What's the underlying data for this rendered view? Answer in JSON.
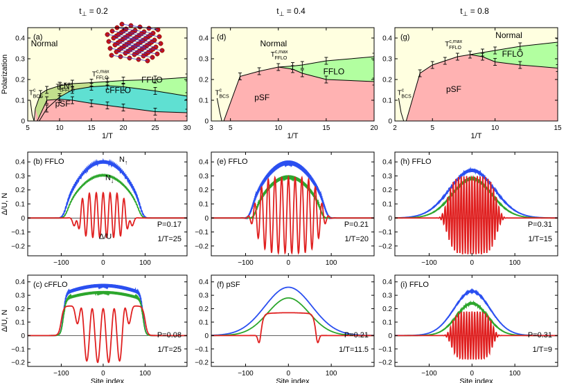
{
  "columns": [
    {
      "title": "t",
      "sub": "⊥",
      "value": " = 0.2"
    },
    {
      "title": "t",
      "sub": "⊥",
      "value": " = 0.4"
    },
    {
      "title": "t",
      "sub": "⊥",
      "value": " = 0.8"
    }
  ],
  "colors": {
    "normal": "#ffffe0",
    "pSF": "#ffb2b2",
    "FFLO": "#b2ffa0",
    "cFFLO": "#5fe0d2",
    "cN": "#c2df8c",
    "up": "#2a4ff0",
    "down": "#2ca62c",
    "gap": "#e02020"
  },
  "axes_labels": {
    "polarization": "Polarization",
    "inverse_T": "1/T",
    "gap_density": "Δ/U, N",
    "site_index": "Site index"
  },
  "chart_data": [
    {
      "id": "a",
      "type": "area",
      "panel_label": "(a)",
      "xlabel": "1/T",
      "ylabel": "Polarization",
      "xlim": [
        5,
        30
      ],
      "ylim": [
        0,
        0.45
      ],
      "xticks": [
        5,
        10,
        15,
        20,
        25,
        30
      ],
      "yticks": [
        0,
        0.1,
        0.2,
        0.3,
        0.4
      ],
      "regions": [
        {
          "name": "Normal",
          "label_at": [
            7.6,
            0.36
          ]
        },
        {
          "name": "cN",
          "label_at": [
            10.8,
            0.155
          ]
        },
        {
          "name": "FFLO",
          "label_at": [
            24.5,
            0.185
          ]
        },
        {
          "name": "cFFLO",
          "label_at": [
            19.2,
            0.135
          ]
        },
        {
          "name": "pSF",
          "label_at": [
            10.5,
            0.07
          ]
        }
      ],
      "upper_boundary": {
        "x": [
          6.2,
          7,
          8,
          10,
          12,
          15,
          17.5,
          20,
          25,
          30
        ],
        "y": [
          0.06,
          0.13,
          0.15,
          0.17,
          0.18,
          0.185,
          0.19,
          0.195,
          0.2,
          0.21
        ]
      },
      "middle_boundary": {
        "x": [
          6.8,
          8,
          10,
          12,
          15,
          17.5,
          20,
          25,
          30
        ],
        "y": [
          0.0,
          0.06,
          0.115,
          0.15,
          0.165,
          0.17,
          0.165,
          0.145,
          0.12
        ]
      },
      "lower_boundary": {
        "x": [
          6.5,
          8,
          10,
          12,
          15,
          17.5,
          20,
          25,
          30
        ],
        "y": [
          0.0,
          0.1,
          0.105,
          0.1,
          0.085,
          0.075,
          0.065,
          0.045,
          0.04
        ]
      },
      "error_points": {
        "x": [
          8,
          10,
          12,
          15,
          17.5,
          20,
          25
        ],
        "y": [
          0.15,
          0.17,
          0.18,
          0.185,
          0.19,
          0.195,
          0.2
        ]
      },
      "tc_curve": {
        "x": [
          5.4,
          5.7,
          6.0,
          6.2
        ],
        "y": [
          0.1,
          0.03,
          0.0,
          0.06
        ]
      },
      "annotations": [
        {
          "main": "T",
          "sup": "c",
          "sub": "BCS",
          "at": [
            5.2,
            0.125
          ]
        },
        {
          "main": "T",
          "sup": "c,max",
          "sub": "cFFLO",
          "at": [
            9.4,
            0.155
          ]
        },
        {
          "main": "T",
          "sup": "c,max",
          "sub": "FFLO",
          "at": [
            15.1,
            0.215
          ]
        }
      ],
      "has_inset_image": true
    },
    {
      "id": "d",
      "type": "area",
      "panel_label": "(d)",
      "xlabel": "1/T",
      "ylabel": "",
      "xlim": [
        3,
        20
      ],
      "ylim": [
        0,
        0.45
      ],
      "xticks": [
        3,
        5,
        10,
        15,
        20
      ],
      "yticks": [
        0,
        0.1,
        0.2,
        0.3,
        0.4
      ],
      "regions": [
        {
          "name": "Normal",
          "label_at": [
            9.5,
            0.36
          ]
        },
        {
          "name": "FFLO",
          "label_at": [
            15.8,
            0.225
          ]
        },
        {
          "name": "pSF",
          "label_at": [
            8.3,
            0.1
          ]
        }
      ],
      "upper_boundary": {
        "x": [
          4.3,
          6,
          8,
          10,
          11.5,
          12.5,
          15,
          20
        ],
        "y": [
          0.0,
          0.215,
          0.24,
          0.26,
          0.265,
          0.27,
          0.29,
          0.31
        ]
      },
      "lower_boundary": {
        "x": [
          10,
          11.5,
          12.5,
          15,
          20
        ],
        "y": [
          0.26,
          0.25,
          0.23,
          0.2,
          0.19
        ]
      },
      "error_points": {
        "x": [
          10,
          11.5,
          12.5,
          15,
          20
        ],
        "y": [
          0.26,
          0.265,
          0.27,
          0.29,
          0.31
        ]
      },
      "tc_curve": {
        "x": [
          3.6,
          3.9,
          4.1,
          4.3
        ],
        "y": [
          0.11,
          0.04,
          0.0,
          0.0
        ]
      },
      "annotations": [
        {
          "main": "T",
          "sup": "c",
          "sub": "BCS",
          "at": [
            3.4,
            0.125
          ]
        },
        {
          "main": "T",
          "sup": "c,max",
          "sub": "FFLO",
          "at": [
            9.2,
            0.31
          ]
        }
      ]
    },
    {
      "id": "g",
      "type": "area",
      "panel_label": "(g)",
      "xlabel": "1/T",
      "ylabel": "",
      "xlim": [
        2,
        15
      ],
      "ylim": [
        0,
        0.45
      ],
      "xticks": [
        2,
        5,
        10,
        15
      ],
      "yticks": [
        0,
        0.1,
        0.2,
        0.3,
        0.4
      ],
      "regions": [
        {
          "name": "Normal",
          "label_at": [
            11.1,
            0.4
          ]
        },
        {
          "name": "FFLO",
          "label_at": [
            11.4,
            0.31
          ]
        },
        {
          "name": "pSF",
          "label_at": [
            6.7,
            0.14
          ]
        }
      ],
      "upper_boundary": {
        "x": [
          2.9,
          4,
          5,
          6,
          7,
          8,
          9,
          10,
          12,
          15
        ],
        "y": [
          0.0,
          0.23,
          0.27,
          0.29,
          0.31,
          0.32,
          0.33,
          0.34,
          0.36,
          0.38
        ]
      },
      "lower_boundary": {
        "x": [
          8,
          9,
          10,
          12,
          15
        ],
        "y": [
          0.32,
          0.31,
          0.285,
          0.27,
          0.255
        ]
      },
      "error_points": {
        "x": [
          8,
          9,
          10,
          12,
          15
        ],
        "y": [
          0.32,
          0.33,
          0.34,
          0.36,
          0.38
        ]
      },
      "tc_curve": {
        "x": [
          2.3,
          2.5,
          2.7,
          2.9
        ],
        "y": [
          0.11,
          0.04,
          0.0,
          0.0
        ]
      },
      "annotations": [
        {
          "main": "T",
          "sup": "c",
          "sub": "BCS",
          "at": [
            2.2,
            0.125
          ]
        },
        {
          "main": "T",
          "sup": "c,max",
          "sub": "FFLO",
          "at": [
            6.0,
            0.36
          ]
        }
      ]
    },
    {
      "id": "b",
      "type": "line",
      "panel_label": "(b) FFLO",
      "ylabel": "Δ/U, N",
      "xlabel": "",
      "xlim": [
        -180,
        200
      ],
      "ylim": [
        -0.27,
        0.47
      ],
      "xticks": [
        -100,
        0,
        100
      ],
      "yticks": [
        -0.2,
        -0.1,
        0,
        0.1,
        0.2,
        0.3,
        0.4
      ],
      "info": [
        "P=0.17",
        "1/T=25"
      ],
      "series_labels": [
        {
          "text": "N",
          "sub": "↑",
          "at": [
            38,
            0.4
          ]
        },
        {
          "text": "N",
          "sub": "↓",
          "at": [
            5,
            0.27
          ]
        },
        {
          "text": "Δ/U",
          "at": [
            -10,
            -0.15
          ]
        }
      ],
      "series": [
        {
          "name": "N↑",
          "kind": "dome",
          "amp": 0.4,
          "halfwidth": 92,
          "edge": 20,
          "ripple": 0.012,
          "ripple_k": 0.35
        },
        {
          "name": "N↓",
          "kind": "dome",
          "amp": 0.305,
          "halfwidth": 88,
          "edge": 20,
          "ripple": 0.005,
          "ripple_k": 0.35
        },
        {
          "name": "Δ/U",
          "kind": "oscill",
          "amp": 0.16,
          "offset": 0.02,
          "halfwidth": 62,
          "k": 0.38,
          "edge_dip": -0.08
        }
      ]
    },
    {
      "id": "e",
      "type": "line",
      "panel_label": "(e) FFLO",
      "ylabel": "",
      "xlabel": "",
      "xlim": [
        -180,
        200
      ],
      "ylim": [
        -0.27,
        0.47
      ],
      "xticks": [
        -100,
        0,
        100
      ],
      "yticks": [
        -0.2,
        -0.1,
        0,
        0.1,
        0.2,
        0.3,
        0.4
      ],
      "info": [
        "P=0.21",
        "1/T=20"
      ],
      "series": [
        {
          "name": "N↑",
          "kind": "dome",
          "amp": 0.39,
          "halfwidth": 88,
          "edge": 20,
          "ripple": 0.02,
          "ripple_k": 0.7
        },
        {
          "name": "N↓",
          "kind": "dome",
          "amp": 0.29,
          "halfwidth": 78,
          "edge": 16,
          "ripple": 0.015,
          "ripple_k": 0.7
        },
        {
          "name": "Δ/U",
          "kind": "oscill",
          "amp": 0.27,
          "offset": 0.02,
          "halfwidth": 78,
          "k": 0.4,
          "edge_dip": 0
        }
      ]
    },
    {
      "id": "h",
      "type": "line",
      "panel_label": "(h) FFLO",
      "ylabel": "",
      "xlabel": "",
      "xlim": [
        -180,
        200
      ],
      "ylim": [
        -0.27,
        0.47
      ],
      "xticks": [
        -100,
        0,
        100
      ],
      "yticks": [
        -0.2,
        -0.1,
        0,
        0.1,
        0.2,
        0.3,
        0.4
      ],
      "info": [
        "P=0.31",
        "1/T=15"
      ],
      "series": [
        {
          "name": "N↑",
          "kind": "gauss",
          "amp": 0.34,
          "sigma": 52,
          "ripple": 0.012,
          "ripple_k": 1.0
        },
        {
          "name": "N↓",
          "kind": "gauss",
          "amp": 0.28,
          "sigma": 46,
          "ripple": 0.012,
          "ripple_k": 1.0
        },
        {
          "name": "Δ/U",
          "kind": "oscill",
          "amp": 0.28,
          "offset": 0.02,
          "halfwidth": 60,
          "k": 1.0,
          "edge_dip": 0
        }
      ]
    },
    {
      "id": "c",
      "type": "line",
      "panel_label": "(c) cFFLO",
      "ylabel": "Δ/U, N",
      "xlabel": "Site index",
      "xlim": [
        -180,
        200
      ],
      "ylim": [
        -0.23,
        0.45
      ],
      "xticks": [
        -100,
        0,
        100
      ],
      "yticks": [
        -0.2,
        -0.1,
        0,
        0.1,
        0.2,
        0.3,
        0.4
      ],
      "info": [
        "P=0.08",
        "1/T=25"
      ],
      "series": [
        {
          "name": "N↑",
          "kind": "dome",
          "amp": 0.37,
          "halfwidth": 95,
          "edge": 12,
          "ripple": 0.015,
          "ripple_k": 0.7,
          "flat": true
        },
        {
          "name": "N↓",
          "kind": "dome",
          "amp": 0.32,
          "halfwidth": 95,
          "edge": 12,
          "ripple": 0.012,
          "ripple_k": 0.7,
          "flat": true
        },
        {
          "name": "Δ/U",
          "kind": "cfflo",
          "plateau": 0.22,
          "halfwidth": 100,
          "amp": 0.2,
          "core": 62,
          "k": 0.24
        }
      ]
    },
    {
      "id": "f",
      "type": "line",
      "panel_label": "(f) pSF",
      "ylabel": "",
      "xlabel": "Site index",
      "xlim": [
        -180,
        200
      ],
      "ylim": [
        -0.23,
        0.45
      ],
      "xticks": [
        -100,
        0,
        100
      ],
      "yticks": [
        -0.2,
        -0.1,
        0,
        0.1,
        0.2,
        0.3,
        0.4
      ],
      "info": [
        "P=0.21",
        "1/T=11.5"
      ],
      "series": [
        {
          "name": "N↑",
          "kind": "gauss",
          "amp": 0.36,
          "sigma": 55,
          "ripple": 0,
          "ripple_k": 0
        },
        {
          "name": "N↓",
          "kind": "gauss",
          "amp": 0.28,
          "sigma": 48,
          "ripple": 0,
          "ripple_k": 0
        },
        {
          "name": "Δ/U",
          "kind": "psf",
          "plateau": 0.17,
          "halfwidth": 62,
          "dip": -0.07
        }
      ]
    },
    {
      "id": "i",
      "type": "line",
      "panel_label": "(i) FFLO",
      "ylabel": "",
      "xlabel": "Site index",
      "xlim": [
        -180,
        200
      ],
      "ylim": [
        -0.23,
        0.45
      ],
      "xticks": [
        -100,
        0,
        100
      ],
      "yticks": [
        -0.2,
        -0.1,
        0,
        0.1,
        0.2,
        0.3,
        0.4
      ],
      "info": [
        "P=0.31",
        "1/T=9"
      ],
      "series": [
        {
          "name": "N↑",
          "kind": "gauss",
          "amp": 0.33,
          "sigma": 42,
          "ripple": 0.006,
          "ripple_k": 1.0
        },
        {
          "name": "N↓",
          "kind": "gauss",
          "amp": 0.24,
          "sigma": 36,
          "ripple": 0.01,
          "ripple_k": 1.0
        },
        {
          "name": "Δ/U",
          "kind": "oscill",
          "amp": 0.18,
          "offset": 0.0,
          "halfwidth": 50,
          "k": 1.0,
          "edge_dip": 0
        }
      ]
    }
  ]
}
